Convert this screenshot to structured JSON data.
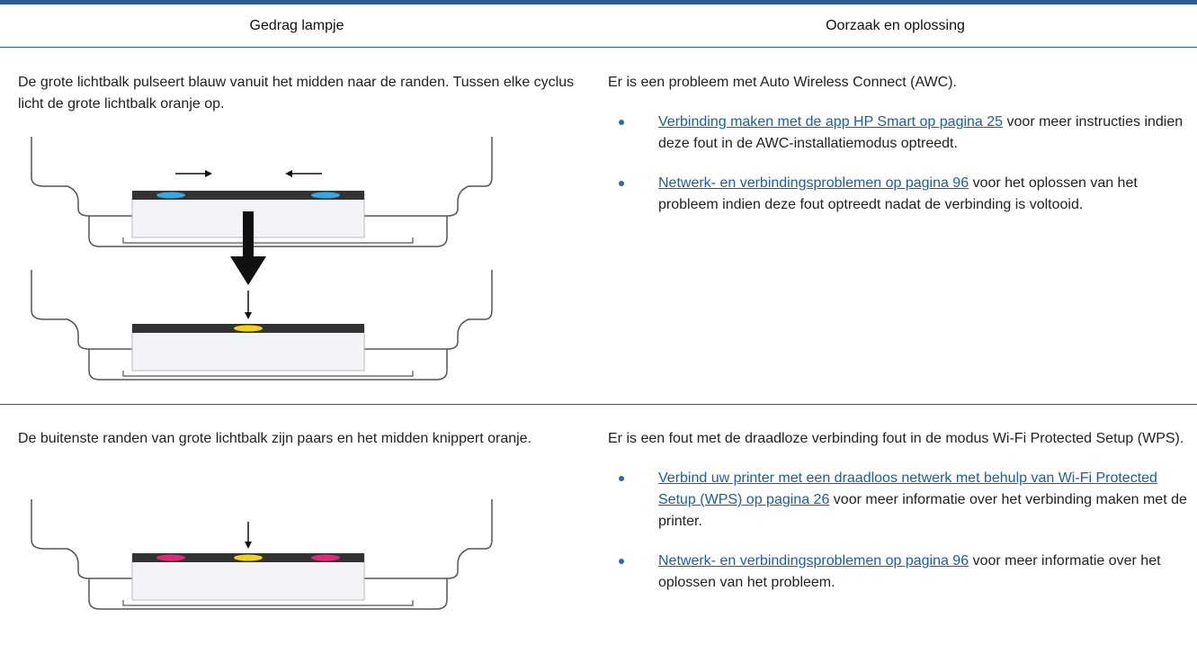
{
  "table": {
    "headers": [
      "Gedrag lampje",
      "Oorzaak en oplossing"
    ],
    "rows": [
      {
        "behavior": "De grote lichtbalk pulseert blauw vanuit het midden naar de randen. Tussen elke cyclus licht de grote lichtbalk oranje op.",
        "cause": {
          "text": "Er is een probleem met Auto Wireless Connect (AWC).",
          "bullets": [
            {
              "link": "Verbinding maken met de app HP Smart op pagina 25",
              "text": "voor meer instructies indien deze fout in de AWC-installatiemodus optreedt."
            },
            {
              "link": "Netwerk- en verbindingsproblemen op pagina 96",
              "text": "voor het oplossen van het probleem indien deze fout optreedt nadat de verbinding is voltooid."
            }
          ]
        }
      },
      {
        "behavior": "De buitenste randen van grote lichtbalk zijn paars en het midden knippert oranje.",
        "cause": {
          "text": "Er is een fout met de draadloze verbinding fout in de modus Wi-Fi Protected Setup (WPS).",
          "bullets": [
            {
              "link": "Verbind uw printer met een draadloos netwerk met behulp van Wi-Fi Protected Setup (WPS) op pagina 26",
              "text": "voor meer informatie over het verbinding maken met de printer."
            },
            {
              "link": "Netwerk- en verbindingsproblemen op pagina 96",
              "text": "voor meer informatie over het oplossen van het probleem."
            }
          ]
        }
      }
    ]
  }
}
